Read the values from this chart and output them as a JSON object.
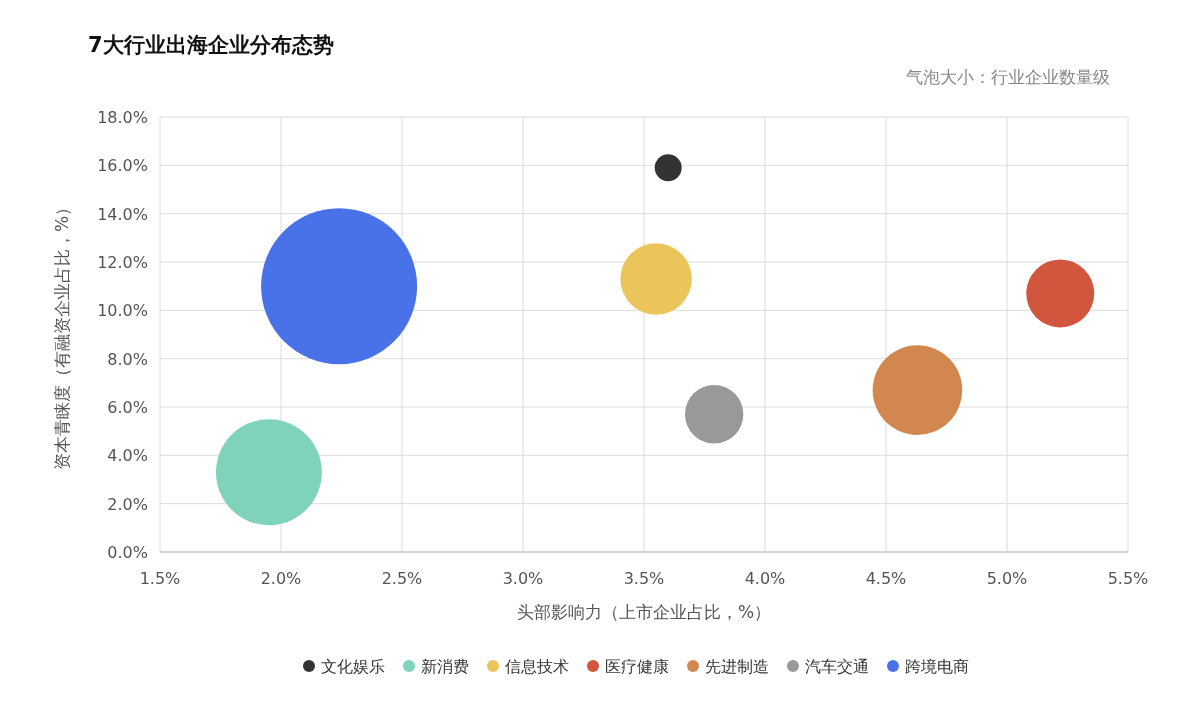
{
  "chart_data": {
    "type": "bubble",
    "title": "7大行业出海企业分布态势",
    "annotations": [
      "气泡大小：行业企业数量级"
    ],
    "xlabel": "头部影响力（上市企业占比，%）",
    "ylabel": "资本青睐度（有融资企业占比，%）",
    "xlim": [
      1.5,
      5.5
    ],
    "xticks": [
      {
        "value": 1.5,
        "label": "1.5%"
      },
      {
        "value": 2.0,
        "label": "2.0%"
      },
      {
        "value": 2.5,
        "label": "2.5%"
      },
      {
        "value": 3.0,
        "label": "3.0%"
      },
      {
        "value": 3.5,
        "label": "3.5%"
      },
      {
        "value": 4.0,
        "label": "4.0%"
      },
      {
        "value": 4.5,
        "label": "4.5%"
      },
      {
        "value": 5.0,
        "label": "5.0%"
      },
      {
        "value": 5.5,
        "label": "5.5%"
      }
    ],
    "ylim": [
      0,
      18
    ],
    "yticks": [
      {
        "value": 0,
        "label": "0.0%"
      },
      {
        "value": 2,
        "label": "2.0%"
      },
      {
        "value": 4,
        "label": "4.0%"
      },
      {
        "value": 6,
        "label": "6.0%"
      },
      {
        "value": 8,
        "label": "8.0%"
      },
      {
        "value": 10,
        "label": "10.0%"
      },
      {
        "value": 12,
        "label": "12.0%"
      },
      {
        "value": 14,
        "label": "14.0%"
      },
      {
        "value": 16,
        "label": "16.0%"
      },
      {
        "value": 18,
        "label": "18.0%"
      }
    ],
    "grid": true,
    "legend": "bottom",
    "series": [
      {
        "name": "文化娱乐",
        "color": "#333333",
        "x": [
          3.6
        ],
        "values": [
          15.9
        ],
        "sizes": [
          0.03
        ]
      },
      {
        "name": "新消费",
        "color": "#7fd3bb",
        "x": [
          1.95
        ],
        "values": [
          3.3
        ],
        "sizes": [
          0.46
        ]
      },
      {
        "name": "信息技术",
        "color": "#ecc55a",
        "x": [
          3.55
        ],
        "values": [
          11.3
        ],
        "sizes": [
          0.21
        ]
      },
      {
        "name": "医疗健康",
        "color": "#d2553e",
        "x": [
          5.22
        ],
        "values": [
          10.7
        ],
        "sizes": [
          0.19
        ]
      },
      {
        "name": "先进制造",
        "color": "#d2874f",
        "x": [
          4.63
        ],
        "values": [
          6.7
        ],
        "sizes": [
          0.33
        ]
      },
      {
        "name": "汽车交通",
        "color": "#999999",
        "x": [
          3.79
        ],
        "values": [
          5.7
        ],
        "sizes": [
          0.14
        ]
      },
      {
        "name": "跨境电商",
        "color": "#4a72e8",
        "x": [
          2.24
        ],
        "values": [
          11.0
        ],
        "sizes": [
          1
        ]
      }
    ]
  }
}
